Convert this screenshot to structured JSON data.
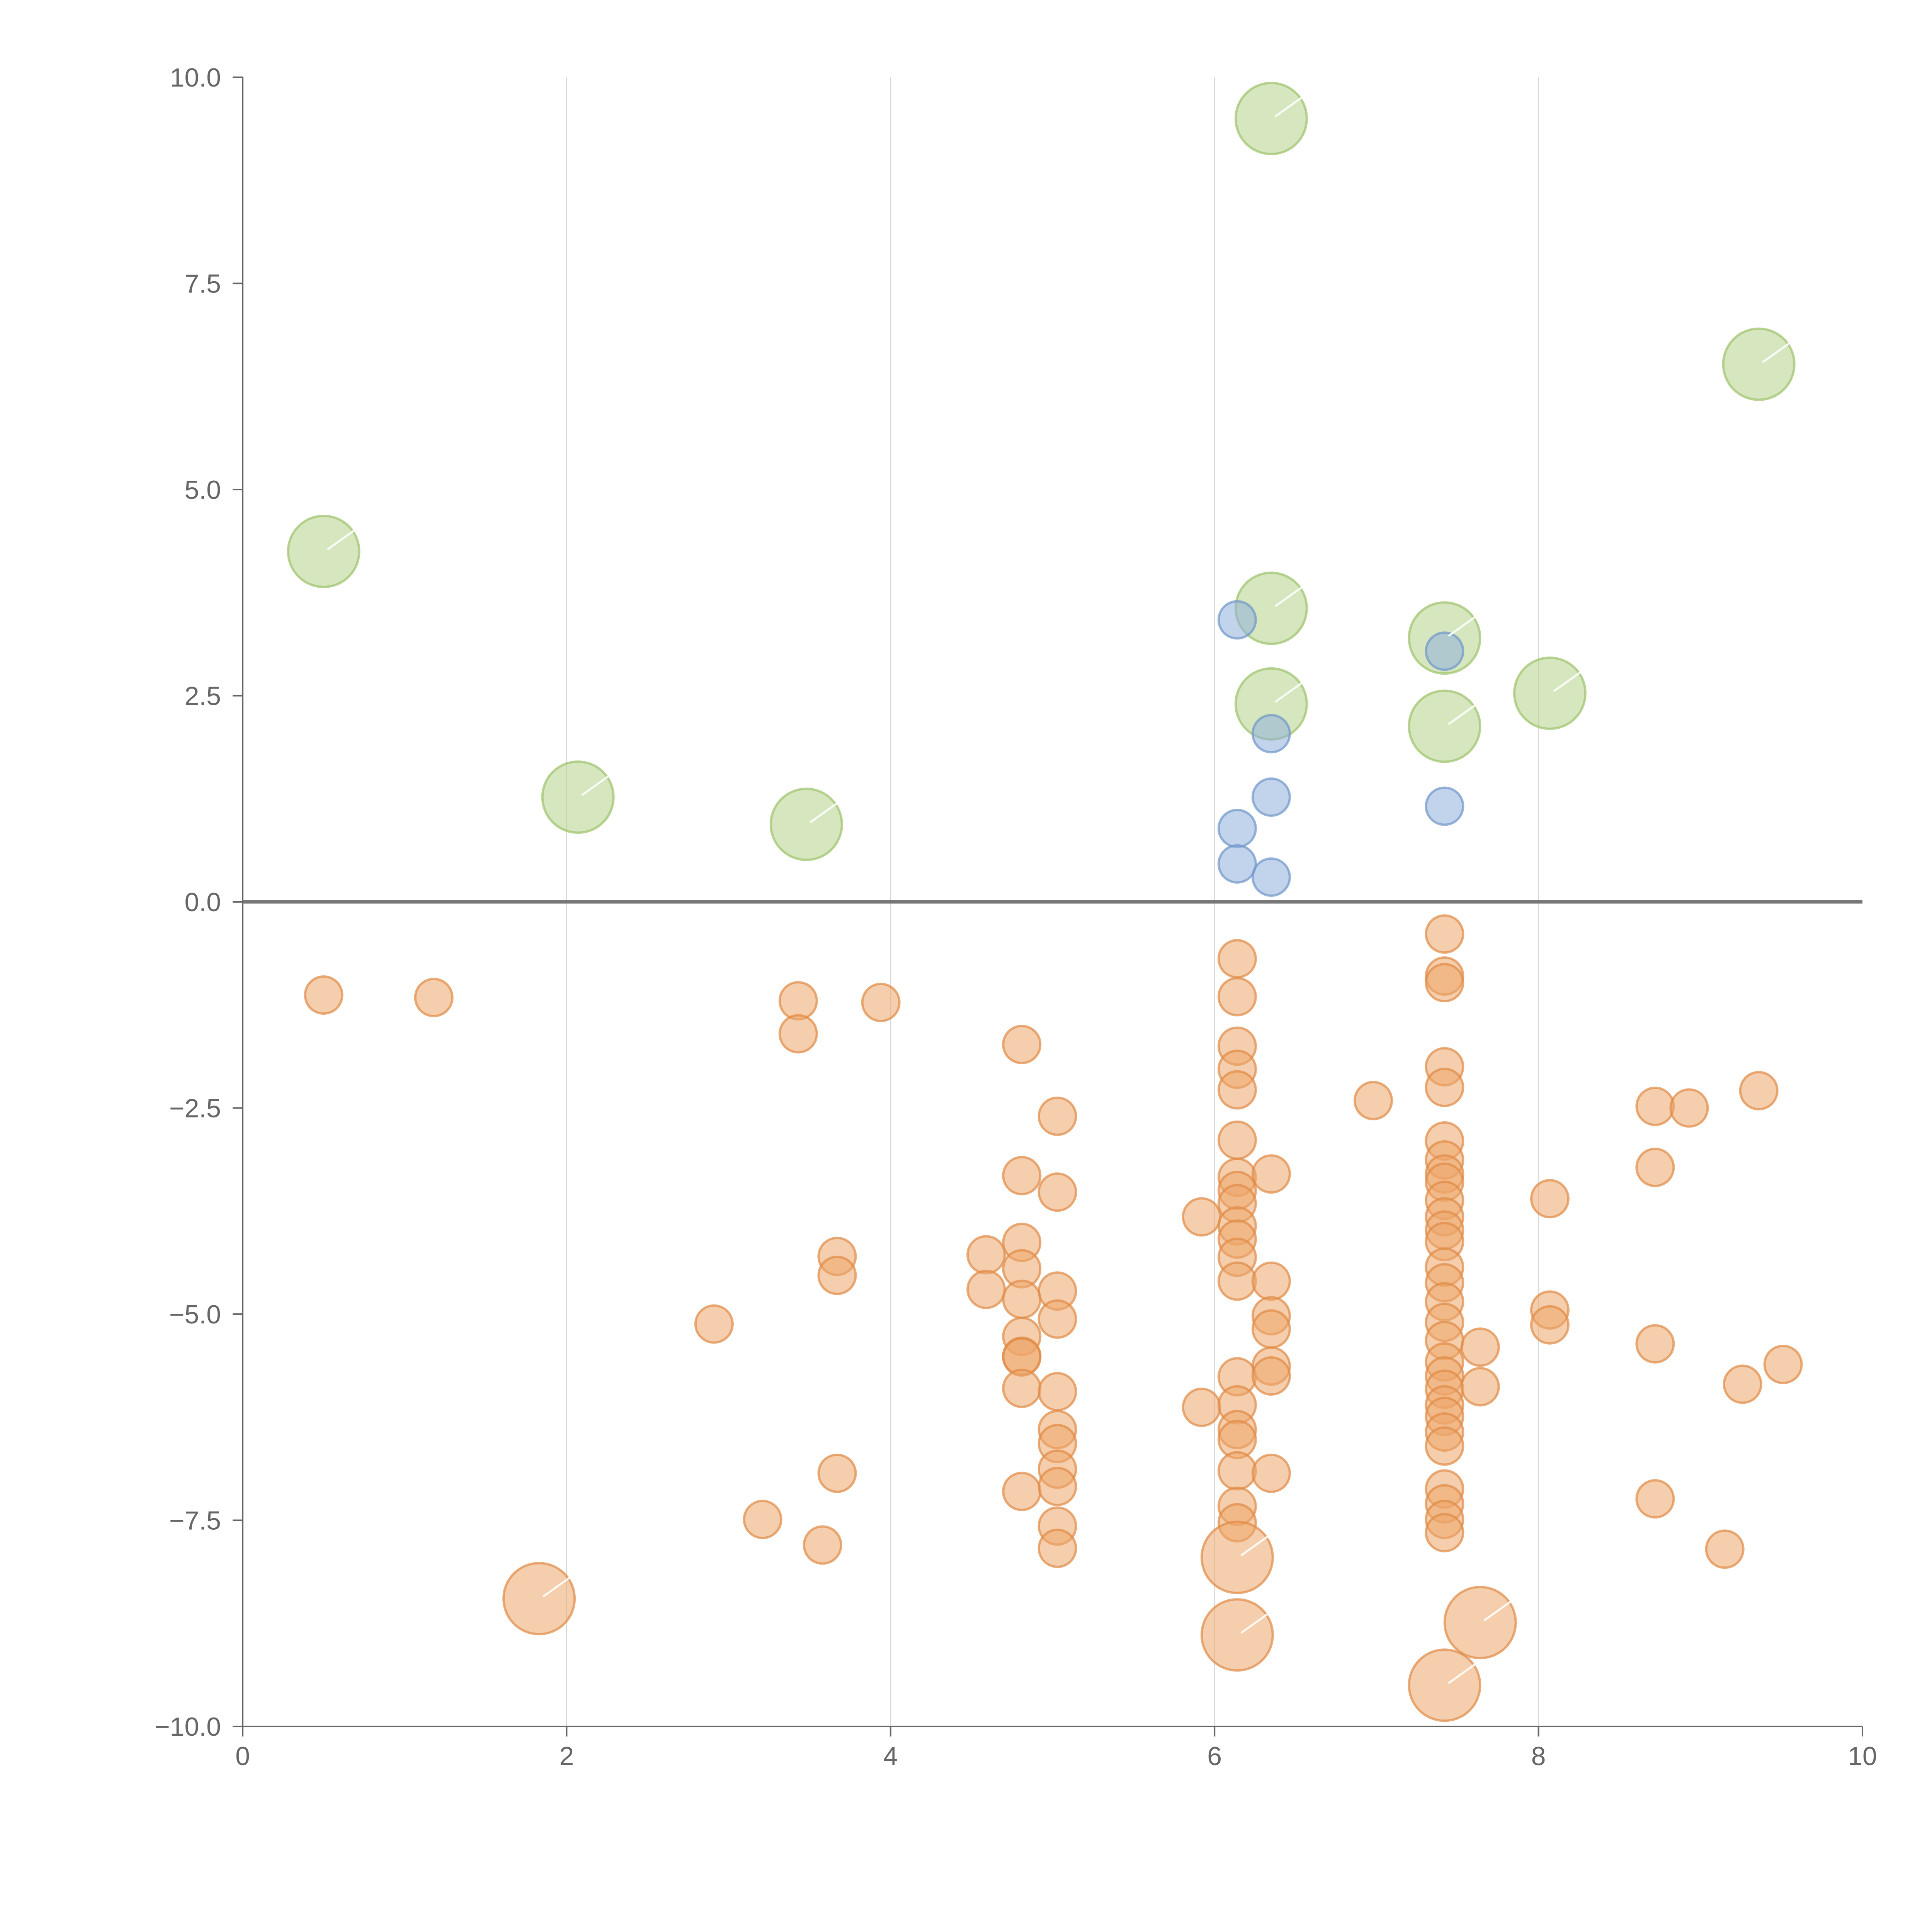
{
  "chart_data": {
    "type": "scatter",
    "title": "",
    "xlabel": "",
    "ylabel": "",
    "xlim": [
      0,
      10
    ],
    "ylim": [
      -10,
      10
    ],
    "x_ticks": [
      "0",
      "2",
      "4",
      "6",
      "8",
      "10"
    ],
    "y_ticks": [
      "10.0",
      "7.5",
      "5.0",
      "2.5",
      "0.0",
      "−2.5",
      "−5.0",
      "−7.5",
      "−10.0"
    ],
    "grid_x": [
      2,
      4,
      6,
      8
    ],
    "reference_line_y": 0,
    "series": [
      {
        "name": "green-large",
        "color": "#b5d28a",
        "stroke": "#9cc26a",
        "size": "large",
        "points": [
          [
            0.5,
            4.25
          ],
          [
            2.07,
            1.27
          ],
          [
            3.48,
            0.94
          ],
          [
            6.35,
            9.5
          ],
          [
            6.35,
            3.56
          ],
          [
            6.35,
            2.4
          ],
          [
            7.42,
            3.2
          ],
          [
            7.42,
            2.13
          ],
          [
            8.07,
            2.53
          ],
          [
            9.36,
            6.52
          ]
        ]
      },
      {
        "name": "blue",
        "color": "#8fb0dc",
        "stroke": "#6f95c9",
        "size": "small",
        "points": [
          [
            6.14,
            3.42
          ],
          [
            6.35,
            2.04
          ],
          [
            6.35,
            1.27
          ],
          [
            6.14,
            0.89
          ],
          [
            6.14,
            0.46
          ],
          [
            6.35,
            0.3
          ],
          [
            7.42,
            3.04
          ],
          [
            7.42,
            1.16
          ]
        ]
      },
      {
        "name": "orange",
        "color": "#eda66a",
        "stroke": "#e08a45",
        "size": "small",
        "points": [
          [
            0.5,
            -1.13
          ],
          [
            1.18,
            -1.16
          ],
          [
            3.43,
            -1.2
          ],
          [
            3.43,
            -1.6
          ],
          [
            3.94,
            -1.22
          ],
          [
            2.91,
            -5.12
          ],
          [
            3.21,
            -7.49
          ],
          [
            3.58,
            -7.8
          ],
          [
            3.67,
            -4.3
          ],
          [
            3.67,
            -4.53
          ],
          [
            3.67,
            -6.93
          ],
          [
            4.59,
            -4.28
          ],
          [
            4.59,
            -4.7
          ],
          [
            4.81,
            -1.73
          ],
          [
            4.81,
            -3.32
          ],
          [
            4.81,
            -4.13
          ],
          [
            4.81,
            -4.45
          ],
          [
            4.81,
            -4.82
          ],
          [
            4.81,
            -5.27
          ],
          [
            4.81,
            -5.51
          ],
          [
            4.81,
            -5.52
          ],
          [
            4.81,
            -5.9
          ],
          [
            4.81,
            -7.15
          ],
          [
            5.03,
            -2.6
          ],
          [
            5.03,
            -3.52
          ],
          [
            5.03,
            -4.72
          ],
          [
            5.03,
            -5.06
          ],
          [
            5.03,
            -5.94
          ],
          [
            5.03,
            -6.4
          ],
          [
            5.03,
            -6.57
          ],
          [
            5.03,
            -6.88
          ],
          [
            5.03,
            -7.09
          ],
          [
            5.03,
            -7.57
          ],
          [
            5.03,
            -7.84
          ],
          [
            5.92,
            -3.82
          ],
          [
            5.92,
            -6.13
          ],
          [
            6.14,
            -0.69
          ],
          [
            6.14,
            -1.15
          ],
          [
            6.14,
            -1.75
          ],
          [
            6.14,
            -2.03
          ],
          [
            6.14,
            -2.28
          ],
          [
            6.14,
            -2.89
          ],
          [
            6.14,
            -3.34
          ],
          [
            6.14,
            -3.5
          ],
          [
            6.14,
            -3.66
          ],
          [
            6.14,
            -3.93
          ],
          [
            6.14,
            -4.09
          ],
          [
            6.14,
            -4.31
          ],
          [
            6.14,
            -4.6
          ],
          [
            6.14,
            -5.76
          ],
          [
            6.14,
            -6.1
          ],
          [
            6.14,
            -6.4
          ],
          [
            6.14,
            -6.52
          ],
          [
            6.14,
            -6.9
          ],
          [
            6.14,
            -7.33
          ],
          [
            6.14,
            -7.53
          ],
          [
            6.35,
            -3.3
          ],
          [
            6.35,
            -4.6
          ],
          [
            6.35,
            -5.02
          ],
          [
            6.35,
            -5.18
          ],
          [
            6.35,
            -5.63
          ],
          [
            6.35,
            -5.75
          ],
          [
            6.35,
            -6.93
          ],
          [
            6.98,
            -2.41
          ],
          [
            7.42,
            -0.39
          ],
          [
            7.42,
            -0.9
          ],
          [
            7.42,
            -0.98
          ],
          [
            7.42,
            -2.0
          ],
          [
            7.42,
            -2.25
          ],
          [
            7.42,
            -2.9
          ],
          [
            7.42,
            -3.13
          ],
          [
            7.42,
            -3.3
          ],
          [
            7.42,
            -3.4
          ],
          [
            7.42,
            -3.62
          ],
          [
            7.42,
            -3.82
          ],
          [
            7.42,
            -3.98
          ],
          [
            7.42,
            -4.12
          ],
          [
            7.42,
            -4.43
          ],
          [
            7.42,
            -4.62
          ],
          [
            7.42,
            -4.85
          ],
          [
            7.42,
            -5.1
          ],
          [
            7.42,
            -5.32
          ],
          [
            7.42,
            -5.58
          ],
          [
            7.42,
            -5.75
          ],
          [
            7.42,
            -5.91
          ],
          [
            7.42,
            -6.1
          ],
          [
            7.42,
            -6.24
          ],
          [
            7.42,
            -6.43
          ],
          [
            7.42,
            -6.6
          ],
          [
            7.42,
            -7.12
          ],
          [
            7.42,
            -7.3
          ],
          [
            7.42,
            -7.49
          ],
          [
            7.42,
            -7.65
          ],
          [
            7.64,
            -5.4
          ],
          [
            7.64,
            -5.88
          ],
          [
            8.07,
            -3.6
          ],
          [
            8.07,
            -4.95
          ],
          [
            8.07,
            -5.13
          ],
          [
            8.72,
            -2.48
          ],
          [
            8.72,
            -3.22
          ],
          [
            8.72,
            -5.36
          ],
          [
            8.72,
            -7.24
          ],
          [
            8.93,
            -2.5
          ],
          [
            9.15,
            -7.85
          ],
          [
            9.26,
            -5.85
          ],
          [
            9.36,
            -2.29
          ],
          [
            9.51,
            -5.61
          ]
        ]
      },
      {
        "name": "orange-large",
        "color": "#eda66a",
        "stroke": "#e08a45",
        "size": "large",
        "points": [
          [
            1.83,
            -8.45
          ],
          [
            6.14,
            -7.95
          ],
          [
            6.14,
            -8.89
          ],
          [
            7.42,
            -9.5
          ],
          [
            7.64,
            -8.74
          ]
        ]
      }
    ]
  }
}
